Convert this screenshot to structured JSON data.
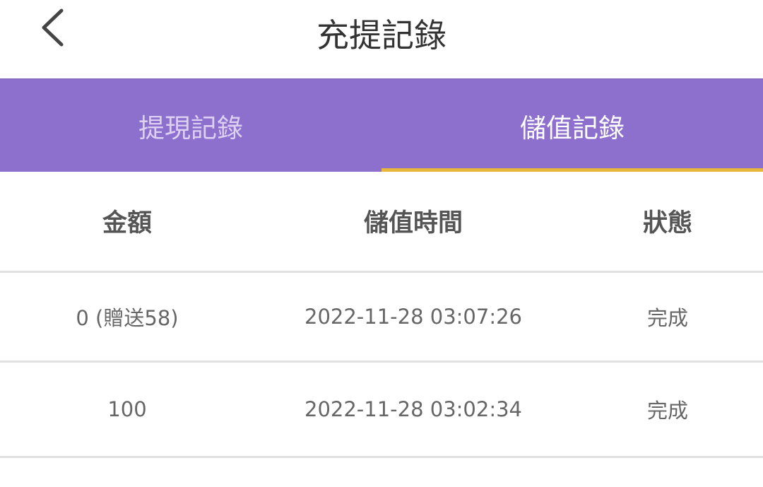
{
  "header": {
    "title": "充提記錄",
    "back_icon": "chevron-left-icon"
  },
  "tabs": [
    {
      "label": "提現記錄",
      "active": false
    },
    {
      "label": "儲值記錄",
      "active": true
    }
  ],
  "colors": {
    "tab_bar": "#8d6fce",
    "active_underline": "#e8b63a"
  },
  "table": {
    "columns": [
      "金額",
      "儲值時間",
      "狀態"
    ],
    "rows": [
      {
        "amount": "0 (贈送58)",
        "time": "2022-11-28 03:07:26",
        "status": "完成"
      },
      {
        "amount": "100",
        "time": "2022-11-28 03:02:34",
        "status": "完成"
      }
    ]
  }
}
